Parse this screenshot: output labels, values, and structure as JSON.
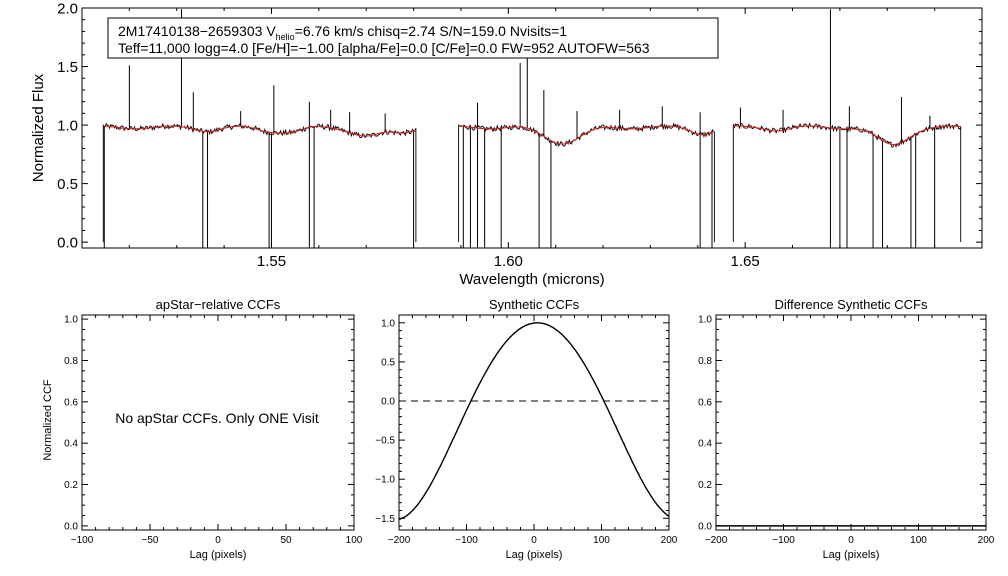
{
  "chart_data": [
    {
      "type": "line",
      "id": "spectrum",
      "xlabel": "Wavelength (microns)",
      "ylabel": "Normalized Flux",
      "xlim": [
        1.51,
        1.7
      ],
      "ylim": [
        -0.05,
        2.0
      ],
      "xticks": [
        "1.55",
        "1.60",
        "1.65"
      ],
      "xtick_values": [
        1.55,
        1.6,
        1.65
      ],
      "yticks": [
        "0.0",
        "0.5",
        "1.0",
        "1.5",
        "2.0"
      ],
      "ytick_values": [
        0.0,
        0.5,
        1.0,
        1.5,
        2.0
      ],
      "header": {
        "star_id": "2M17410138−2659303",
        "v_prefix": "V",
        "v_sub": "helio",
        "v_rest": "=6.76 km/s  chisq=2.74  S/N=159.0  Nvisits=1",
        "line2": "Teff=11,000 logg=4.0 [Fe/H]=−1.00 [alpha/Fe]=0.0 [C/Fe]=0.0 FW=952 AUTOFW=563"
      },
      "chips": [
        [
          1.5145,
          1.5805
        ],
        [
          1.5895,
          1.6435
        ],
        [
          1.6475,
          1.6955
        ]
      ],
      "model_color": "#d42020",
      "data_color": "#000000",
      "continuum": 0.98,
      "absorption": [
        {
          "center": 1.5365,
          "depth": 0.025,
          "width": 0.0022
        },
        {
          "center": 1.5495,
          "depth": 0.03,
          "width": 0.0025
        },
        {
          "center": 1.5545,
          "depth": 0.035,
          "width": 0.0022
        },
        {
          "center": 1.5705,
          "depth": 0.075,
          "width": 0.0032
        },
        {
          "center": 1.5775,
          "depth": 0.04,
          "width": 0.0022
        },
        {
          "center": 1.6115,
          "depth": 0.13,
          "width": 0.0038
        },
        {
          "center": 1.641,
          "depth": 0.05,
          "width": 0.0022
        },
        {
          "center": 1.657,
          "depth": 0.02,
          "width": 0.002
        },
        {
          "center": 1.681,
          "depth": 0.15,
          "width": 0.0032
        }
      ],
      "spikes_up": [
        [
          1.52,
          1.51
        ],
        [
          1.531,
          1.99
        ],
        [
          1.5335,
          1.28
        ],
        [
          1.5435,
          1.12
        ],
        [
          1.5505,
          1.34
        ],
        [
          1.558,
          1.2
        ],
        [
          1.5625,
          1.13
        ],
        [
          1.5665,
          1.11
        ],
        [
          1.574,
          1.1
        ],
        [
          1.5935,
          1.19
        ],
        [
          1.6025,
          1.53
        ],
        [
          1.6075,
          1.3
        ],
        [
          1.604,
          1.85
        ],
        [
          1.6145,
          1.12
        ],
        [
          1.6235,
          1.13
        ],
        [
          1.6325,
          1.16
        ],
        [
          1.6405,
          1.11
        ],
        [
          1.649,
          1.15
        ],
        [
          1.658,
          1.13
        ],
        [
          1.668,
          1.99
        ],
        [
          1.672,
          1.16
        ],
        [
          1.683,
          1.24
        ],
        [
          1.689,
          1.08
        ]
      ],
      "dropouts": [
        1.5147,
        1.5355,
        1.5365,
        1.5495,
        1.55,
        1.558,
        1.559,
        1.58,
        1.5905,
        1.592,
        1.5935,
        1.595,
        1.5985,
        1.6065,
        1.609,
        1.6405,
        1.643,
        1.668,
        1.67,
        1.6715,
        1.677,
        1.679,
        1.685,
        1.686,
        1.69
      ]
    },
    {
      "type": "line",
      "id": "apstar-ccf",
      "title": "apStar−relative CCFs",
      "xlabel": "Lag (pixels)",
      "ylabel": "Normalized CCF",
      "xlim": [
        -100,
        100
      ],
      "ylim": [
        -0.02,
        1.02
      ],
      "xticks": [
        "−100",
        "−50",
        "0",
        "50",
        "100"
      ],
      "xtick_values": [
        -100,
        -50,
        0,
        50,
        100
      ],
      "yticks": [
        "0.0",
        "0.2",
        "0.4",
        "0.6",
        "0.8",
        "1.0"
      ],
      "ytick_values": [
        0.0,
        0.2,
        0.4,
        0.6,
        0.8,
        1.0
      ],
      "annotation": "No apStar CCFs.  Only ONE Visit"
    },
    {
      "type": "line",
      "id": "synthetic-ccf",
      "title": "Synthetic CCFs",
      "xlabel": "Lag (pixels)",
      "xlim": [
        -200,
        200
      ],
      "ylim": [
        -1.65,
        1.1
      ],
      "xticks": [
        "−200",
        "−100",
        "0",
        "100",
        "200"
      ],
      "xtick_values": [
        -200,
        -100,
        0,
        100,
        200
      ],
      "yticks": [
        "−1.5",
        "−1.0",
        "−0.5",
        "0.0",
        "0.5",
        "1.0"
      ],
      "ytick_values": [
        -1.5,
        -1.0,
        -0.5,
        0.0,
        0.5,
        1.0
      ],
      "peak_lag": 5,
      "half_period": 197,
      "zero_line": 0.0
    },
    {
      "type": "line",
      "id": "difference-ccf",
      "title": "Difference Synthetic CCFs",
      "xlabel": "Lag (pixels)",
      "xlim": [
        -200,
        200
      ],
      "ylim": [
        -0.02,
        1.02
      ],
      "xticks": [
        "−200",
        "−100",
        "0",
        "100",
        "200"
      ],
      "xtick_values": [
        -200,
        -100,
        0,
        100,
        200
      ],
      "yticks": [
        "0.0",
        "0.2",
        "0.4",
        "0.6",
        "0.8",
        "1.0"
      ],
      "ytick_values": [
        0.0,
        0.2,
        0.4,
        0.6,
        0.8,
        1.0
      ],
      "flat_value": 0.0
    }
  ]
}
